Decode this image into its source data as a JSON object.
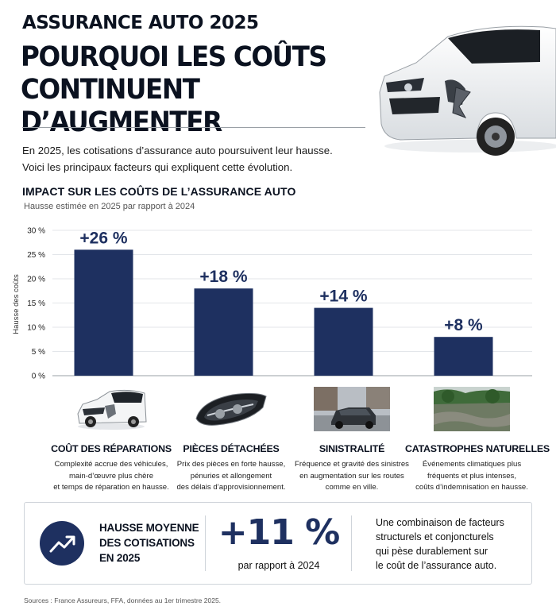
{
  "header": {
    "kicker": "ASSURANCE AUTO 2025",
    "headline": "POURQUOI LES COÛTS CONTINUENT D’AUGMENTER"
  },
  "intro": {
    "line1": "En 2025, les cotisations d’assurance auto poursuivent leur hausse.",
    "line2": "Voici les principaux facteurs qui expliquent cette évolution."
  },
  "chart": {
    "title": "IMPACT SUR LES COÛTS DE L’ASSURANCE AUTO",
    "subtitle": "Hausse estimée en 2025 par rapport à 2024"
  },
  "chart_data": {
    "type": "bar",
    "title": "IMPACT SUR LES COÛTS DE L’ASSURANCE AUTO",
    "subtitle": "Hausse estimée en 2025 par rapport à 2024",
    "categories": [
      "COÛT DES RÉPARATIONS",
      "PIÈCES DÉTACHÉES",
      "SINISTRALITÉ",
      "CATASTROPHES NATURELLES"
    ],
    "values": [
      26,
      18,
      14,
      8
    ],
    "data_labels": [
      "+26 %",
      "+18 %",
      "+14 %",
      "+8 %"
    ],
    "ylabel": "Hausse des coûts",
    "xlabel": "",
    "ylim": [
      0,
      30
    ],
    "yticks": [
      0,
      5,
      10,
      15,
      20,
      25,
      30
    ],
    "ytick_labels": [
      "0 %",
      "5 %",
      "10 %",
      "15 %",
      "20 %",
      "25 %",
      "30 %"
    ],
    "grid": true,
    "bar_color": "#1e3060"
  },
  "categories_detail": [
    {
      "title": "COÛT DES RÉPARATIONS",
      "icon": "damaged-car-icon",
      "lines": [
        "Complexité accrue des véhicules,",
        "main-d’œuvre plus chère",
        "et temps de réparation en hausse."
      ]
    },
    {
      "title": "PIÈCES DÉTACHÉES",
      "icon": "headlight-icon",
      "lines": [
        "Prix des pièces en forte hausse,",
        "pénuries et allongement",
        "des délais d’approvisionnement."
      ]
    },
    {
      "title": "SINISTRALITÉ",
      "icon": "street-car-icon",
      "lines": [
        "Fréquence et gravité des sinistres",
        "en augmentation sur les routes",
        "comme en ville."
      ]
    },
    {
      "title": "CATASTROPHES NATURELLES",
      "icon": "flood-icon",
      "lines": [
        "Événements climatiques plus",
        "fréquents et plus intenses,",
        "coûts d’indemnisation en hausse."
      ]
    }
  ],
  "summary": {
    "icon": "trend-up-icon",
    "label_lines": [
      "HAUSSE MOYENNE",
      "DES COTISATIONS",
      "EN 2025"
    ],
    "value": "+11 %",
    "value_sub": "par rapport à 2024",
    "text_lines": [
      "Une combinaison de facteurs",
      "structurels et conjoncturels",
      "qui pèse durablement sur",
      "le coût de l’assurance auto."
    ]
  },
  "footer": {
    "sources": "Sources : France Assureurs, FFA, données au 1er trimestre 2025."
  },
  "colors": {
    "navy": "#1e3060",
    "text": "#0b1220",
    "grid": "#e3e6ea"
  }
}
